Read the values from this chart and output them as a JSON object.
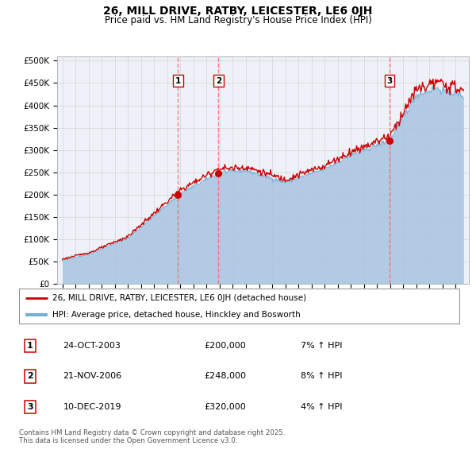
{
  "title": "26, MILL DRIVE, RATBY, LEICESTER, LE6 0JH",
  "subtitle": "Price paid vs. HM Land Registry's House Price Index (HPI)",
  "ylim": [
    0,
    500000
  ],
  "sale_markers": [
    {
      "label": "1",
      "date": 2003.82,
      "price": 200000
    },
    {
      "label": "2",
      "date": 2006.9,
      "price": 248000
    },
    {
      "label": "3",
      "date": 2019.95,
      "price": 320000
    }
  ],
  "legend_entries": [
    "26, MILL DRIVE, RATBY, LEICESTER, LE6 0JH (detached house)",
    "HPI: Average price, detached house, Hinckley and Bosworth"
  ],
  "table_rows": [
    {
      "num": "1",
      "date": "24-OCT-2003",
      "price": "£200,000",
      "hpi": "7% ↑ HPI"
    },
    {
      "num": "2",
      "date": "21-NOV-2006",
      "price": "£248,000",
      "hpi": "8% ↑ HPI"
    },
    {
      "num": "3",
      "date": "10-DEC-2019",
      "price": "£320,000",
      "hpi": "4% ↑ HPI"
    }
  ],
  "footer": "Contains HM Land Registry data © Crown copyright and database right 2025.\nThis data is licensed under the Open Government Licence v3.0.",
  "hpi_color": "#a8c4e0",
  "hpi_line_color": "#7aafd4",
  "price_color": "#cc0000",
  "marker_color": "#cc0000",
  "vline_color": "#ff6666",
  "bg_color": "#eef2f8",
  "grid_color": "#cccccc",
  "title_fontsize": 10,
  "subtitle_fontsize": 8.5
}
